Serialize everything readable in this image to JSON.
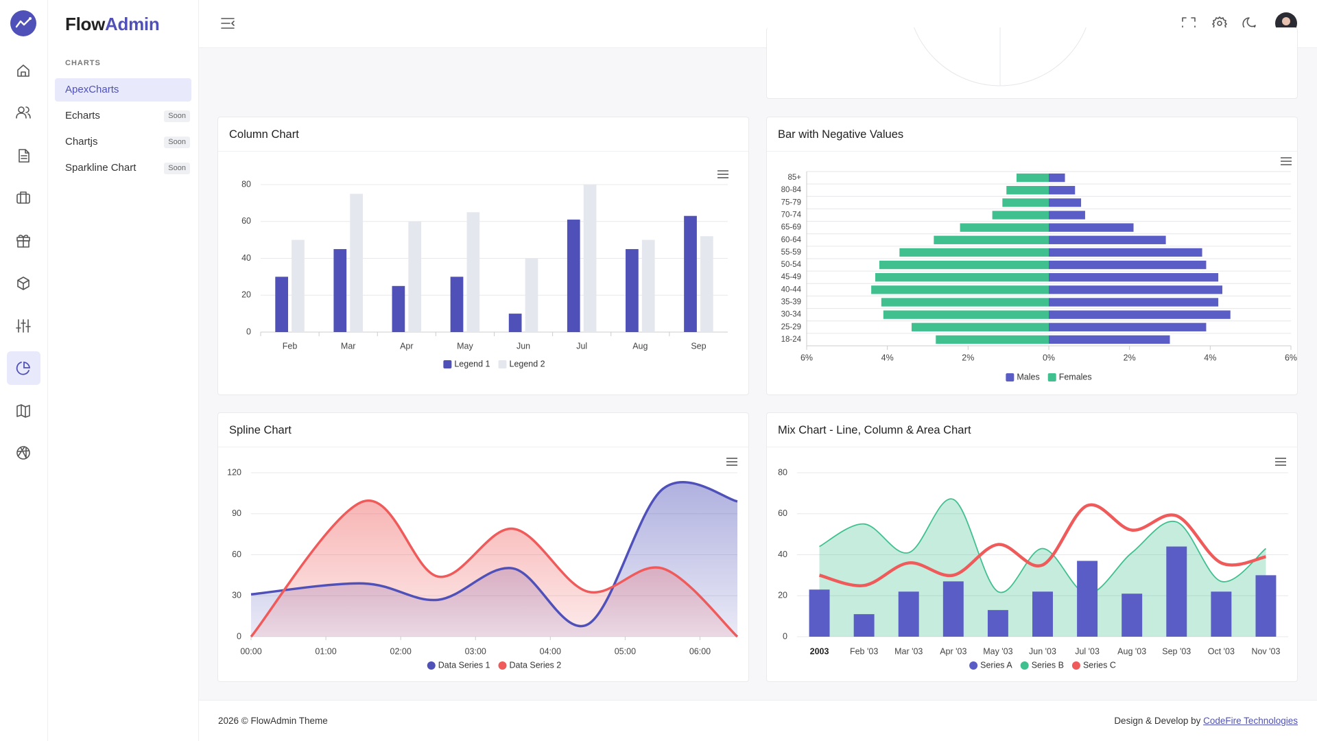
{
  "brand": {
    "first": "Flow",
    "second": "Admin"
  },
  "nav": {
    "section": "CHARTS",
    "items": [
      {
        "label": "ApexCharts"
      },
      {
        "label": "Echarts",
        "badge": "Soon"
      },
      {
        "label": "Chartjs",
        "badge": "Soon"
      },
      {
        "label": "Sparkline Chart",
        "badge": "Soon"
      }
    ]
  },
  "footer": {
    "copyright": "2026 © FlowAdmin Theme",
    "credit": "Design & Develop by",
    "link": "CodeFire Technologies"
  },
  "chart_data": [
    {
      "type": "bar",
      "title": "Column Chart",
      "categories": [
        "Feb",
        "Mar",
        "Apr",
        "May",
        "Jun",
        "Jul",
        "Aug",
        "Sep"
      ],
      "series": [
        {
          "name": "Legend 1",
          "color": "#4f51b8",
          "values": [
            30,
            45,
            25,
            30,
            10,
            61,
            45,
            63
          ]
        },
        {
          "name": "Legend 2",
          "color": "#e4e8ee",
          "values": [
            50,
            75,
            60,
            65,
            40,
            80,
            50,
            52
          ]
        }
      ],
      "ylim": [
        0,
        80
      ],
      "yticks": [
        0,
        20,
        40,
        60,
        80
      ],
      "grid": true,
      "legend": "bottom",
      "legend_marker": "square"
    },
    {
      "type": "hbar",
      "title": "Bar with Negative Values",
      "categories": [
        "85+",
        "80-84",
        "75-79",
        "70-74",
        "65-69",
        "60-64",
        "55-59",
        "50-54",
        "45-49",
        "40-44",
        "35-39",
        "30-34",
        "25-29",
        "18-24"
      ],
      "series": [
        {
          "name": "Males",
          "color": "#5a5dc6",
          "values": [
            0.4,
            0.65,
            0.8,
            0.9,
            2.1,
            2.9,
            3.8,
            3.9,
            4.2,
            4.3,
            4.2,
            4.5,
            3.9,
            3.0
          ]
        },
        {
          "name": "Females",
          "color": "#40c08f",
          "values": [
            -0.8,
            -1.05,
            -1.15,
            -1.4,
            -2.2,
            -2.85,
            -3.7,
            -4.2,
            -4.3,
            -4.4,
            -4.15,
            -4.1,
            -3.4,
            -2.8
          ]
        }
      ],
      "xlim": [
        -6,
        6
      ],
      "xticks": [
        {
          "value": -6,
          "label": "6%"
        },
        {
          "value": -4,
          "label": "4%"
        },
        {
          "value": -2,
          "label": "2%"
        },
        {
          "value": 0,
          "label": "0%"
        },
        {
          "value": 2,
          "label": "2%"
        },
        {
          "value": 4,
          "label": "4%"
        },
        {
          "value": 6,
          "label": "6%"
        }
      ],
      "grid": true,
      "legend": "bottom",
      "legend_marker": "square"
    },
    {
      "type": "area",
      "title": "Spline Chart",
      "x": [
        0,
        1.5,
        2.5,
        3.5,
        4.5,
        5.5,
        6.5
      ],
      "series": [
        {
          "name": "Data Series 1",
          "color": "#4f51b8",
          "values": [
            31,
            39,
            27,
            50,
            9,
            108,
            99
          ]
        },
        {
          "name": "Data Series 2",
          "color": "#ef5a5a",
          "values": [
            0,
            99,
            44,
            79,
            33,
            50,
            0
          ]
        }
      ],
      "xlim": [
        0,
        6.5
      ],
      "xticks": [
        {
          "value": 0,
          "label": "00:00"
        },
        {
          "value": 1,
          "label": "01:00"
        },
        {
          "value": 2,
          "label": "02:00"
        },
        {
          "value": 3,
          "label": "03:00"
        },
        {
          "value": 4,
          "label": "04:00"
        },
        {
          "value": 5,
          "label": "05:00"
        },
        {
          "value": 6,
          "label": "06:00"
        }
      ],
      "ylim": [
        0,
        120
      ],
      "yticks": [
        0,
        30,
        60,
        90,
        120
      ],
      "grid": true,
      "legend": "bottom",
      "legend_marker": "circle"
    },
    {
      "type": "mixed",
      "title": "Mix Chart - Line, Column & Area Chart",
      "categories": [
        "2003",
        "Feb '03",
        "Mar '03",
        "Apr '03",
        "May '03",
        "Jun '03",
        "Jul '03",
        "Aug '03",
        "Sep '03",
        "Oct '03",
        "Nov '03"
      ],
      "series": [
        {
          "name": "Series A",
          "type": "bar",
          "color": "#5a5dc6",
          "values": [
            23,
            11,
            22,
            27,
            13,
            22,
            37,
            21,
            44,
            22,
            30
          ]
        },
        {
          "name": "Series B",
          "type": "area",
          "color": "#40c08f",
          "values": [
            44,
            55,
            41,
            67,
            22,
            43,
            21,
            41,
            56,
            27,
            43
          ]
        },
        {
          "name": "Series C",
          "type": "line",
          "color": "#ef5a5a",
          "values": [
            30,
            25,
            36,
            30,
            45,
            35,
            64,
            52,
            59,
            36,
            39
          ]
        }
      ],
      "ylim": [
        0,
        80
      ],
      "yticks": [
        0,
        20,
        40,
        60,
        80
      ],
      "grid": true,
      "legend": "bottom",
      "legend_marker": "circle"
    }
  ]
}
